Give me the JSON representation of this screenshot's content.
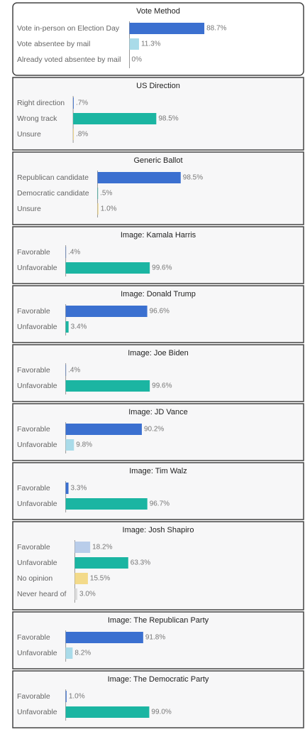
{
  "chart_data": [
    {
      "type": "bar",
      "title": "Vote Method",
      "categories": [
        "Vote in-person on Election Day",
        "Vote absentee by mail",
        "Already voted absentee by mail"
      ],
      "values": [
        88.7,
        11.3,
        0
      ],
      "value_labels": [
        "88.7%",
        "11.3%",
        "0%"
      ],
      "colors": [
        "#3b70d0",
        "#a9dbe9",
        "#3b70d0"
      ]
    },
    {
      "type": "bar",
      "title": "US Direction",
      "categories": [
        "Right direction",
        "Wrong track",
        "Unsure"
      ],
      "values": [
        0.7,
        98.5,
        0.8
      ],
      "value_labels": [
        ".7%",
        "98.5%",
        ".8%"
      ],
      "colors": [
        "#3b70d0",
        "#1bb5a2",
        "#f3da8a"
      ]
    },
    {
      "type": "bar",
      "title": "Generic Ballot",
      "categories": [
        "Republican candidate",
        "Democratic candidate",
        "Unsure"
      ],
      "values": [
        98.5,
        0.5,
        1.0
      ],
      "value_labels": [
        "98.5%",
        ".5%",
        "1.0%"
      ],
      "colors": [
        "#3b70d0",
        "#1bb5a2",
        "#f3da8a"
      ]
    },
    {
      "type": "bar",
      "title": "Image: Kamala Harris",
      "categories": [
        "Favorable",
        "Unfavorable"
      ],
      "values": [
        0.4,
        99.6
      ],
      "value_labels": [
        ".4%",
        "99.6%"
      ],
      "colors": [
        "#3b70d0",
        "#1bb5a2"
      ]
    },
    {
      "type": "bar",
      "title": "Image: Donald Trump",
      "categories": [
        "Favorable",
        "Unfavorable"
      ],
      "values": [
        96.6,
        3.4
      ],
      "value_labels": [
        "96.6%",
        "3.4%"
      ],
      "colors": [
        "#3b70d0",
        "#1bb5a2"
      ]
    },
    {
      "type": "bar",
      "title": "Image: Joe Biden",
      "categories": [
        "Favorable",
        "Unfavorable"
      ],
      "values": [
        0.4,
        99.6
      ],
      "value_labels": [
        ".4%",
        "99.6%"
      ],
      "colors": [
        "#3b70d0",
        "#1bb5a2"
      ]
    },
    {
      "type": "bar",
      "title": "Image: JD Vance",
      "categories": [
        "Favorable",
        "Unfavorable"
      ],
      "values": [
        90.2,
        9.8
      ],
      "value_labels": [
        "90.2%",
        "9.8%"
      ],
      "colors": [
        "#3b70d0",
        "#a9dbe9"
      ]
    },
    {
      "type": "bar",
      "title": "Image: Tim Walz",
      "categories": [
        "Favorable",
        "Unfavorable"
      ],
      "values": [
        3.3,
        96.7
      ],
      "value_labels": [
        "3.3%",
        "96.7%"
      ],
      "colors": [
        "#3b70d0",
        "#1bb5a2"
      ]
    },
    {
      "type": "bar",
      "title": "Image: Josh Shapiro",
      "categories": [
        "Favorable",
        "Unfavorable",
        "No opinion",
        "Never heard of"
      ],
      "values": [
        18.2,
        63.3,
        15.5,
        3.0
      ],
      "value_labels": [
        "18.2%",
        "63.3%",
        "15.5%",
        "3.0%"
      ],
      "colors": [
        "#b9cdea",
        "#1bb5a2",
        "#f3da8a",
        "#dddddd"
      ]
    },
    {
      "type": "bar",
      "title": "Image: The Republican Party",
      "categories": [
        "Favorable",
        "Unfavorable"
      ],
      "values": [
        91.8,
        8.2
      ],
      "value_labels": [
        "91.8%",
        "8.2%"
      ],
      "colors": [
        "#3b70d0",
        "#a9dbe9"
      ]
    },
    {
      "type": "bar",
      "title": "Image: The Democratic Party",
      "categories": [
        "Favorable",
        "Unfavorable"
      ],
      "values": [
        1.0,
        99.0
      ],
      "value_labels": [
        "1.0%",
        "99.0%"
      ],
      "colors": [
        "#3b70d0",
        "#1bb5a2"
      ]
    }
  ]
}
